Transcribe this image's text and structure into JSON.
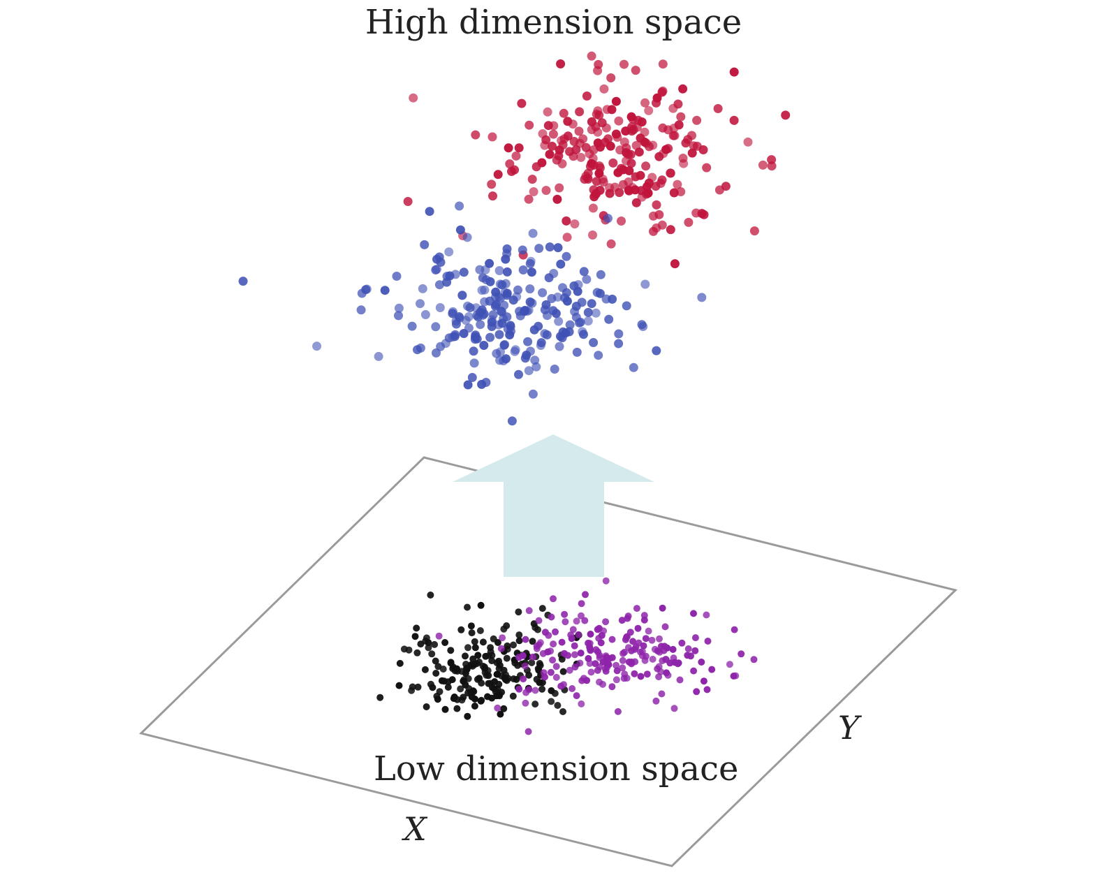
{
  "labels": {
    "high_space": "High dimension space",
    "low_space": "Low dimension space",
    "axis_x": "X",
    "axis_y": "Y"
  },
  "colors": {
    "class_a_high": "#c0143c",
    "class_b_high": "#3f51b5",
    "class_a_low": "#8e24aa",
    "class_b_low": "#111111",
    "arrow": "#d4eaec",
    "plane": "#9a9a9a"
  },
  "legend": {
    "class_a": "red points (high) → purple points (low)",
    "class_b": "blue points (high) → black points (low)"
  },
  "elements": {
    "arrow_direction": "up",
    "plane": "projection plane"
  }
}
